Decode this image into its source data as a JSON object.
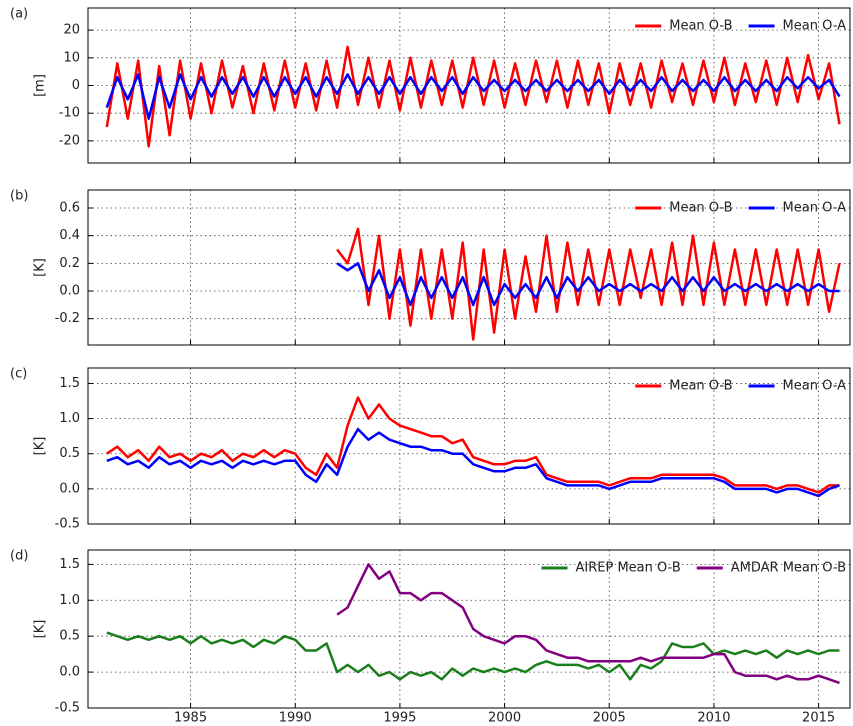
{
  "chart_data": [
    {
      "type": "line",
      "panel_label": "(a)",
      "ylabel": "[m]",
      "legend": "upper right",
      "grid": true,
      "xlim": [
        1980.1,
        2016.5
      ],
      "ylim": [
        -28,
        28
      ],
      "xticks": [
        1985,
        1990,
        1995,
        2000,
        2005,
        2010,
        2015
      ],
      "yticks": [
        -20,
        -10,
        0,
        10,
        20
      ],
      "x": [
        1981,
        1981.5,
        1982,
        1982.5,
        1983,
        1983.5,
        1984,
        1984.5,
        1985,
        1985.5,
        1986,
        1986.5,
        1987,
        1987.5,
        1988,
        1988.5,
        1989,
        1989.5,
        1990,
        1990.5,
        1991,
        1991.5,
        1992,
        1992.5,
        1993,
        1993.5,
        1994,
        1994.5,
        1995,
        1995.5,
        1996,
        1996.5,
        1997,
        1997.5,
        1998,
        1998.5,
        1999,
        1999.5,
        2000,
        2000.5,
        2001,
        2001.5,
        2002,
        2002.5,
        2003,
        2003.5,
        2004,
        2004.5,
        2005,
        2005.5,
        2006,
        2006.5,
        2007,
        2007.5,
        2008,
        2008.5,
        2009,
        2009.5,
        2010,
        2010.5,
        2011,
        2011.5,
        2012,
        2012.5,
        2013,
        2013.5,
        2014,
        2014.5,
        2015,
        2015.5,
        2016
      ],
      "series": [
        {
          "name": "Mean O-B",
          "color": "#ff0000",
          "values": [
            -15,
            8,
            -12,
            9,
            -22,
            7,
            -18,
            9,
            -12,
            8,
            -10,
            9,
            -8,
            7,
            -10,
            8,
            -9,
            9,
            -8,
            8,
            -9,
            9,
            -8,
            14,
            -7,
            10,
            -8,
            9,
            -9,
            10,
            -8,
            9,
            -7,
            9,
            -8,
            10,
            -7,
            9,
            -8,
            8,
            -7,
            9,
            -6,
            9,
            -8,
            9,
            -7,
            8,
            -10,
            8,
            -7,
            8,
            -8,
            9,
            -6,
            8,
            -7,
            9,
            -6,
            10,
            -7,
            8,
            -6,
            9,
            -7,
            10,
            -6,
            11,
            -5,
            8,
            -14
          ]
        },
        {
          "name": "Mean O-A",
          "color": "#0000ff",
          "values": [
            -8,
            3,
            -5,
            4,
            -12,
            3,
            -8,
            4,
            -5,
            3,
            -4,
            3,
            -3,
            3,
            -4,
            3,
            -4,
            3,
            -3,
            3,
            -4,
            3,
            -3,
            4,
            -3,
            3,
            -3,
            3,
            -3,
            3,
            -3,
            3,
            -2,
            3,
            -3,
            3,
            -2,
            2,
            -2,
            2,
            -2,
            2,
            -2,
            2,
            -2,
            2,
            -2,
            2,
            -3,
            2,
            -2,
            2,
            -2,
            3,
            -2,
            2,
            -2,
            2,
            -2,
            3,
            -2,
            2,
            -2,
            2,
            -2,
            3,
            -1,
            3,
            -1,
            2,
            -4
          ]
        }
      ]
    },
    {
      "type": "line",
      "panel_label": "(b)",
      "ylabel": "[K]",
      "legend": "upper right",
      "grid": true,
      "xlim": [
        1980.1,
        2016.5
      ],
      "ylim": [
        -0.39,
        0.73
      ],
      "xticks": [
        1985,
        1990,
        1995,
        2000,
        2005,
        2010,
        2015
      ],
      "yticks": [
        -0.2,
        {
          "value": 0,
          "label": "0.0"
        },
        0.2,
        0.4,
        0.6
      ],
      "x": [
        1992,
        1992.5,
        1993,
        1993.5,
        1994,
        1994.5,
        1995,
        1995.5,
        1996,
        1996.5,
        1997,
        1997.5,
        1998,
        1998.5,
        1999,
        1999.5,
        2000,
        2000.5,
        2001,
        2001.5,
        2002,
        2002.5,
        2003,
        2003.5,
        2004,
        2004.5,
        2005,
        2005.5,
        2006,
        2006.5,
        2007,
        2007.5,
        2008,
        2008.5,
        2009,
        2009.5,
        2010,
        2010.5,
        2011,
        2011.5,
        2012,
        2012.5,
        2013,
        2013.5,
        2014,
        2014.5,
        2015,
        2015.5,
        2016
      ],
      "series": [
        {
          "name": "Mean O-B",
          "color": "#ff0000",
          "values": [
            0.3,
            0.2,
            0.45,
            -0.1,
            0.4,
            -0.2,
            0.3,
            -0.25,
            0.3,
            -0.2,
            0.3,
            -0.2,
            0.35,
            -0.35,
            0.3,
            -0.3,
            0.3,
            -0.2,
            0.25,
            -0.15,
            0.4,
            -0.15,
            0.35,
            -0.1,
            0.3,
            -0.1,
            0.3,
            -0.1,
            0.3,
            -0.05,
            0.3,
            -0.1,
            0.35,
            -0.1,
            0.4,
            -0.1,
            0.35,
            -0.1,
            0.3,
            -0.1,
            0.3,
            -0.1,
            0.3,
            -0.1,
            0.3,
            -0.1,
            0.3,
            -0.15,
            0.2
          ]
        },
        {
          "name": "Mean O-A",
          "color": "#0000ff",
          "values": [
            0.2,
            0.15,
            0.2,
            0.0,
            0.15,
            -0.05,
            0.1,
            -0.1,
            0.1,
            -0.05,
            0.1,
            -0.05,
            0.1,
            -0.1,
            0.1,
            -0.1,
            0.05,
            -0.05,
            0.05,
            -0.05,
            0.1,
            -0.05,
            0.1,
            0.0,
            0.1,
            0.0,
            0.05,
            0.0,
            0.05,
            0.0,
            0.05,
            0.0,
            0.1,
            0.0,
            0.1,
            0.0,
            0.1,
            0.0,
            0.05,
            0.0,
            0.05,
            0.0,
            0.05,
            0.0,
            0.05,
            0.0,
            0.05,
            0.0,
            0.0
          ]
        }
      ]
    },
    {
      "type": "line",
      "panel_label": "(c)",
      "ylabel": "[K]",
      "legend": "upper right",
      "grid": true,
      "xlim": [
        1980.1,
        2016.5
      ],
      "ylim": [
        -0.5,
        1.72
      ],
      "xticks": [
        1985,
        1990,
        1995,
        2000,
        2005,
        2010,
        2015
      ],
      "yticks": [
        -0.5,
        {
          "value": 0,
          "label": "0.0"
        },
        0.5,
        {
          "value": 1,
          "label": "1.0"
        },
        1.5
      ],
      "x": [
        1981,
        1981.5,
        1982,
        1982.5,
        1983,
        1983.5,
        1984,
        1984.5,
        1985,
        1985.5,
        1986,
        1986.5,
        1987,
        1987.5,
        1988,
        1988.5,
        1989,
        1989.5,
        1990,
        1990.5,
        1991,
        1991.5,
        1992,
        1992.5,
        1993,
        1993.5,
        1994,
        1994.5,
        1995,
        1995.5,
        1996,
        1996.5,
        1997,
        1997.5,
        1998,
        1998.5,
        1999,
        1999.5,
        2000,
        2000.5,
        2001,
        2001.5,
        2002,
        2002.5,
        2003,
        2003.5,
        2004,
        2004.5,
        2005,
        2005.5,
        2006,
        2006.5,
        2007,
        2007.5,
        2008,
        2008.5,
        2009,
        2009.5,
        2010,
        2010.5,
        2011,
        2011.5,
        2012,
        2012.5,
        2013,
        2013.5,
        2014,
        2014.5,
        2015,
        2015.5,
        2016
      ],
      "series": [
        {
          "name": "Mean O-B",
          "color": "#ff0000",
          "values": [
            0.5,
            0.6,
            0.45,
            0.55,
            0.4,
            0.6,
            0.45,
            0.5,
            0.4,
            0.5,
            0.45,
            0.55,
            0.4,
            0.5,
            0.45,
            0.55,
            0.45,
            0.55,
            0.5,
            0.3,
            0.2,
            0.5,
            0.3,
            0.9,
            1.3,
            1.0,
            1.2,
            1.0,
            0.9,
            0.85,
            0.8,
            0.75,
            0.75,
            0.65,
            0.7,
            0.45,
            0.4,
            0.35,
            0.35,
            0.4,
            0.4,
            0.45,
            0.2,
            0.15,
            0.1,
            0.1,
            0.1,
            0.1,
            0.05,
            0.1,
            0.15,
            0.15,
            0.15,
            0.2,
            0.2,
            0.2,
            0.2,
            0.2,
            0.2,
            0.15,
            0.05,
            0.05,
            0.05,
            0.05,
            0.0,
            0.05,
            0.05,
            0.0,
            -0.05,
            0.05,
            0.05
          ]
        },
        {
          "name": "Mean O-A",
          "color": "#0000ff",
          "values": [
            0.4,
            0.45,
            0.35,
            0.4,
            0.3,
            0.45,
            0.35,
            0.4,
            0.3,
            0.4,
            0.35,
            0.4,
            0.3,
            0.4,
            0.35,
            0.4,
            0.35,
            0.4,
            0.4,
            0.2,
            0.1,
            0.35,
            0.2,
            0.6,
            0.85,
            0.7,
            0.8,
            0.7,
            0.65,
            0.6,
            0.6,
            0.55,
            0.55,
            0.5,
            0.5,
            0.35,
            0.3,
            0.25,
            0.25,
            0.3,
            0.3,
            0.35,
            0.15,
            0.1,
            0.05,
            0.05,
            0.05,
            0.05,
            0.0,
            0.05,
            0.1,
            0.1,
            0.1,
            0.15,
            0.15,
            0.15,
            0.15,
            0.15,
            0.15,
            0.1,
            0.0,
            0.0,
            0.0,
            0.0,
            -0.05,
            0.0,
            0.0,
            -0.05,
            -0.1,
            0.0,
            0.05
          ]
        }
      ]
    },
    {
      "type": "line",
      "panel_label": "(d)",
      "ylabel": "[K]",
      "legend": "upper right",
      "grid": true,
      "xlim": [
        1980.1,
        2016.5
      ],
      "ylim": [
        -0.5,
        1.7
      ],
      "xticks": [
        1985,
        1990,
        1995,
        2000,
        2005,
        2010,
        2015
      ],
      "yticks": [
        -0.5,
        {
          "value": 0,
          "label": "0.0"
        },
        0.5,
        {
          "value": 1,
          "label": "1.0"
        },
        1.5
      ],
      "x": [
        1981,
        1981.5,
        1982,
        1982.5,
        1983,
        1983.5,
        1984,
        1984.5,
        1985,
        1985.5,
        1986,
        1986.5,
        1987,
        1987.5,
        1988,
        1988.5,
        1989,
        1989.5,
        1990,
        1990.5,
        1991,
        1991.5,
        1992,
        1992.5,
        1993,
        1993.5,
        1994,
        1994.5,
        1995,
        1995.5,
        1996,
        1996.5,
        1997,
        1997.5,
        1998,
        1998.5,
        1999,
        1999.5,
        2000,
        2000.5,
        2001,
        2001.5,
        2002,
        2002.5,
        2003,
        2003.5,
        2004,
        2004.5,
        2005,
        2005.5,
        2006,
        2006.5,
        2007,
        2007.5,
        2008,
        2008.5,
        2009,
        2009.5,
        2010,
        2010.5,
        2011,
        2011.5,
        2012,
        2012.5,
        2013,
        2013.5,
        2014,
        2014.5,
        2015,
        2015.5,
        2016
      ],
      "series": [
        {
          "name": "AIREP Mean O-B",
          "color": "#1a7f1a",
          "values": [
            0.55,
            0.5,
            0.45,
            0.5,
            0.45,
            0.5,
            0.45,
            0.5,
            0.4,
            0.5,
            0.4,
            0.45,
            0.4,
            0.45,
            0.35,
            0.45,
            0.4,
            0.5,
            0.45,
            0.3,
            0.3,
            0.4,
            0.0,
            0.1,
            0.0,
            0.1,
            -0.05,
            0.0,
            -0.1,
            0.0,
            -0.05,
            0.0,
            -0.1,
            0.05,
            -0.05,
            0.05,
            0.0,
            0.05,
            0.0,
            0.05,
            0.0,
            0.1,
            0.15,
            0.1,
            0.1,
            0.1,
            0.05,
            0.1,
            0.0,
            0.1,
            -0.1,
            0.1,
            0.05,
            0.15,
            0.4,
            0.35,
            0.35,
            0.4,
            0.25,
            0.3,
            0.25,
            0.3,
            0.25,
            0.3,
            0.2,
            0.3,
            0.25,
            0.3,
            0.25,
            0.3,
            0.3
          ]
        },
        {
          "name": "AMDAR Mean O-B",
          "color": "#800080",
          "values": [
            null,
            null,
            null,
            null,
            null,
            null,
            null,
            null,
            null,
            null,
            null,
            null,
            null,
            null,
            null,
            null,
            null,
            null,
            null,
            null,
            null,
            null,
            0.8,
            0.9,
            1.2,
            1.5,
            1.3,
            1.4,
            1.1,
            1.1,
            1.0,
            1.1,
            1.1,
            1.0,
            0.9,
            0.6,
            0.5,
            0.45,
            0.4,
            0.5,
            0.5,
            0.45,
            0.3,
            0.25,
            0.2,
            0.2,
            0.15,
            0.15,
            0.15,
            0.15,
            0.15,
            0.2,
            0.15,
            0.2,
            0.2,
            0.2,
            0.2,
            0.2,
            0.25,
            0.25,
            0.0,
            -0.05,
            -0.05,
            -0.05,
            -0.1,
            -0.05,
            -0.1,
            -0.1,
            -0.05,
            -0.1,
            -0.15
          ]
        }
      ]
    }
  ]
}
